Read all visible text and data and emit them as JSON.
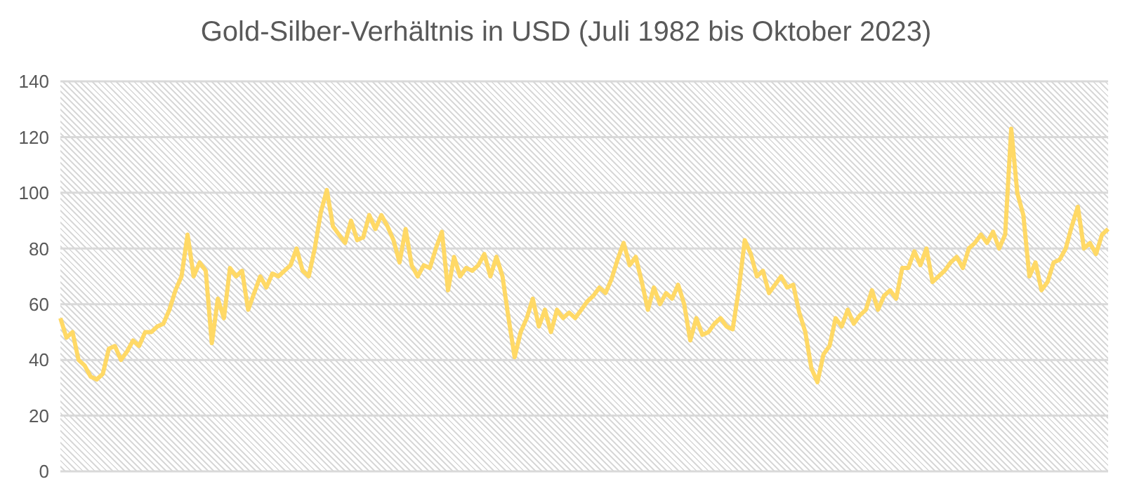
{
  "chart_data": {
    "type": "line",
    "title": "Gold-Silber-Verhältnis in USD (Juli 1982 bis Oktober 2023)",
    "categories": [
      null,
      null,
      null,
      null,
      null,
      null,
      null,
      null,
      null,
      null,
      null,
      null,
      null,
      null,
      null,
      null,
      null,
      null,
      null,
      null,
      null,
      null,
      null,
      null,
      null,
      null,
      null,
      null,
      null,
      null,
      null,
      null,
      null,
      null,
      null,
      null,
      null,
      null,
      null,
      null,
      null,
      null,
      null,
      null,
      null,
      null,
      null,
      null,
      null,
      null,
      null,
      null,
      null,
      null,
      null,
      null,
      null,
      null,
      null,
      null,
      null,
      null,
      null,
      null,
      null,
      null,
      null,
      null,
      null,
      null,
      null,
      null,
      null,
      null,
      null,
      null,
      null,
      null,
      null,
      null,
      null,
      null,
      null,
      null,
      null,
      null,
      null,
      null,
      null,
      null,
      null,
      null,
      null,
      null,
      null,
      null,
      null,
      null,
      null,
      null,
      null,
      null,
      null,
      null,
      null,
      null,
      null,
      null,
      null,
      null,
      null,
      null,
      null,
      null,
      null,
      null,
      null,
      null,
      null,
      null,
      null,
      null,
      null,
      null,
      null,
      null,
      null,
      null,
      null,
      null,
      null,
      null,
      null,
      null,
      null,
      null,
      null,
      null,
      null,
      null,
      null,
      null,
      null,
      null,
      null,
      null,
      null,
      null,
      null,
      null,
      null,
      null,
      null,
      null,
      null,
      null,
      null,
      null,
      null,
      null,
      null,
      null,
      null,
      null,
      null,
      null,
      null,
      null,
      null,
      null,
      null,
      null,
      null,
      null
    ],
    "series": [
      {
        "color": "#ffd966",
        "values": [
          55,
          48,
          50,
          40,
          38,
          34,
          33,
          35,
          44,
          45,
          40,
          43,
          47,
          45,
          50,
          50,
          52,
          53,
          58,
          65,
          70,
          85,
          70,
          75,
          72,
          46,
          62,
          55,
          73,
          70,
          72,
          58,
          64,
          70,
          66,
          71,
          70,
          72,
          74,
          80,
          72,
          70,
          80,
          93,
          101,
          88,
          85,
          82,
          90,
          83,
          84,
          92,
          87,
          92,
          88,
          83,
          75,
          87,
          74,
          70,
          74,
          73,
          80,
          86,
          65,
          77,
          70,
          73,
          72,
          74,
          78,
          70,
          77,
          70,
          55,
          41,
          50,
          55,
          62,
          52,
          58,
          50,
          58,
          55,
          57,
          55,
          58,
          61,
          63,
          66,
          64,
          69,
          76,
          82,
          74,
          77,
          68,
          58,
          66,
          60,
          64,
          62,
          67,
          60,
          47,
          55,
          49,
          50,
          53,
          55,
          52,
          51,
          65,
          83,
          78,
          70,
          72,
          64,
          67,
          70,
          66,
          67,
          57,
          50,
          37,
          32,
          42,
          45,
          55,
          52,
          58,
          53,
          56,
          58,
          65,
          58,
          63,
          65,
          62,
          73,
          73,
          79,
          74,
          80,
          68,
          70,
          72,
          75,
          77,
          73,
          80,
          82,
          85,
          82,
          86,
          80,
          85,
          123,
          100,
          92,
          70,
          75,
          65,
          68,
          75,
          76,
          80,
          88,
          95,
          80,
          82,
          78,
          85,
          87
        ]
      }
    ],
    "ylim": [
      0,
      140
    ],
    "yticks": [
      0,
      20,
      40,
      60,
      80,
      100,
      120,
      140
    ],
    "grid": "y",
    "tick_labels": "y",
    "marker": "none",
    "line_style": "solid"
  }
}
